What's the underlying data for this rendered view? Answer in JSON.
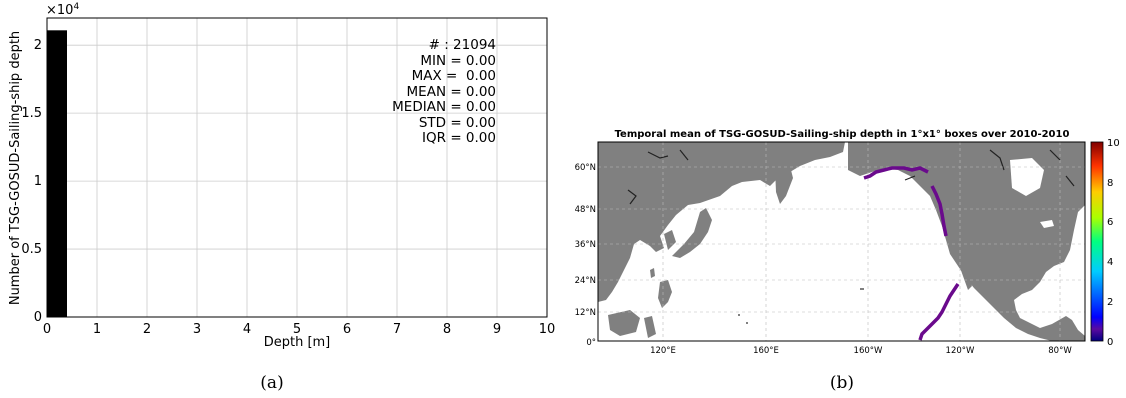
{
  "chart_data": [
    {
      "type": "bar",
      "panel_label": "(a)",
      "xlabel": "Depth [m]",
      "ylabel": "Number of TSG-GOSUD-Sailing-ship depth",
      "y_multiplier": "×10",
      "y_multiplier_exp": "4",
      "xlim": [
        0,
        10
      ],
      "ylim": [
        0,
        2.2
      ],
      "xticks": [
        "0",
        "1",
        "2",
        "3",
        "4",
        "5",
        "6",
        "7",
        "8",
        "9",
        "10"
      ],
      "yticks": [
        "0",
        "0.5",
        "1",
        "1.5",
        "2"
      ],
      "ytick_values": [
        0,
        0.5,
        1,
        1.5,
        2
      ],
      "grid": true,
      "bars": [
        {
          "x0": 0,
          "x1": 0.4,
          "value": 2.1094,
          "color": "#000000"
        }
      ],
      "stats": [
        "# : 21094",
        "MIN = 0.00",
        "MAX =  0.00",
        "MEAN = 0.00",
        "MEDIAN = 0.00",
        "STD = 0.00",
        "IQR = 0.00"
      ]
    },
    {
      "type": "heatmap",
      "panel_label": "(b)",
      "title": "Temporal mean of TSG-GOSUD-Sailing-ship depth in 1°x1° boxes over 2010-2010",
      "x_ticks": [
        "120°E",
        "160°E",
        "160°W",
        "120°W",
        "80°W"
      ],
      "y_ticks": [
        "60°N",
        "48°N",
        "36°N",
        "24°N",
        "12°N",
        "0°"
      ],
      "colorbar": {
        "min": 0,
        "max": 10,
        "ticks": [
          "0",
          "2",
          "4",
          "6",
          "8",
          "10"
        ]
      },
      "land_color": "#808080",
      "ocean_color": "#ffffff",
      "track_color": "#6a0a8c",
      "track_value": 0,
      "grid": true
    }
  ]
}
